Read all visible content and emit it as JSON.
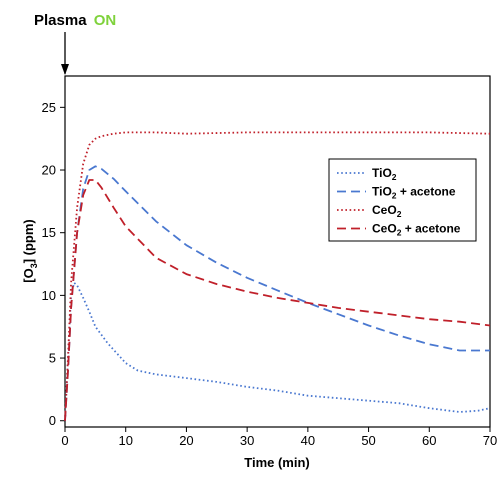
{
  "annotation": {
    "prefix": "Plasma",
    "state": "ON",
    "state_color": "#7fd23c",
    "x": 0
  },
  "chart_data": {
    "type": "line",
    "xlabel": "Time (min)",
    "ylabel": {
      "main": "[O",
      "sub": "3",
      "rest": "] (ppm)"
    },
    "xlim": [
      0,
      70
    ],
    "ylim": [
      -0.5,
      27.5
    ],
    "xticks": [
      0,
      10,
      20,
      30,
      40,
      50,
      60,
      70
    ],
    "yticks": [
      0,
      5,
      10,
      15,
      20,
      25
    ],
    "grid": false,
    "legend_position": "top-right",
    "series": [
      {
        "name": {
          "main": "TiO",
          "sub": "2",
          "rest": ""
        },
        "color": "#4a78d0",
        "dash": "dotted",
        "x": [
          0,
          0.5,
          1,
          1.5,
          2,
          3,
          4,
          5,
          7,
          10,
          12,
          15,
          20,
          25,
          30,
          35,
          40,
          45,
          50,
          55,
          60,
          65,
          68,
          70
        ],
        "y": [
          0,
          5,
          10,
          11,
          10.8,
          9.8,
          8.7,
          7.5,
          6.2,
          4.6,
          4.0,
          3.7,
          3.4,
          3.1,
          2.7,
          2.4,
          2.0,
          1.8,
          1.6,
          1.4,
          1.0,
          0.7,
          0.8,
          1.0
        ]
      },
      {
        "name": {
          "main": "TiO",
          "sub": "2",
          "rest": " + acetone"
        },
        "color": "#4a78d0",
        "dash": "dashed",
        "x": [
          0,
          0.5,
          1,
          2,
          3,
          4,
          5,
          6,
          8,
          10,
          15,
          20,
          25,
          30,
          35,
          40,
          45,
          50,
          55,
          60,
          65,
          70
        ],
        "y": [
          0,
          4,
          9,
          15,
          18.5,
          20,
          20.3,
          20.1,
          19.3,
          18.3,
          15.9,
          14.0,
          12.6,
          11.4,
          10.4,
          9.4,
          8.5,
          7.6,
          6.8,
          6.1,
          5.6,
          5.6
        ]
      },
      {
        "name": {
          "main": "CeO",
          "sub": "2",
          "rest": ""
        },
        "color": "#c0202a",
        "dash": "dotted",
        "x": [
          0,
          0.5,
          1,
          2,
          3,
          4,
          5,
          6,
          8,
          10,
          15,
          20,
          30,
          40,
          50,
          60,
          70
        ],
        "y": [
          0,
          5,
          11,
          17,
          20.5,
          22,
          22.5,
          22.7,
          22.9,
          23.0,
          23.0,
          22.9,
          23.0,
          23.0,
          23.0,
          23.0,
          22.9
        ]
      },
      {
        "name": {
          "main": "CeO",
          "sub": "2",
          "rest": " + acetone"
        },
        "color": "#c0202a",
        "dash": "dashed",
        "x": [
          0,
          0.5,
          1,
          2,
          3,
          4,
          5,
          6,
          8,
          10,
          15,
          20,
          25,
          30,
          35,
          40,
          45,
          50,
          55,
          60,
          65,
          70
        ],
        "y": [
          0,
          4,
          9,
          15,
          18,
          19.2,
          19.2,
          18.6,
          17.0,
          15.5,
          13.0,
          11.7,
          10.9,
          10.3,
          9.8,
          9.4,
          9.0,
          8.7,
          8.4,
          8.1,
          7.9,
          7.6
        ]
      }
    ]
  }
}
